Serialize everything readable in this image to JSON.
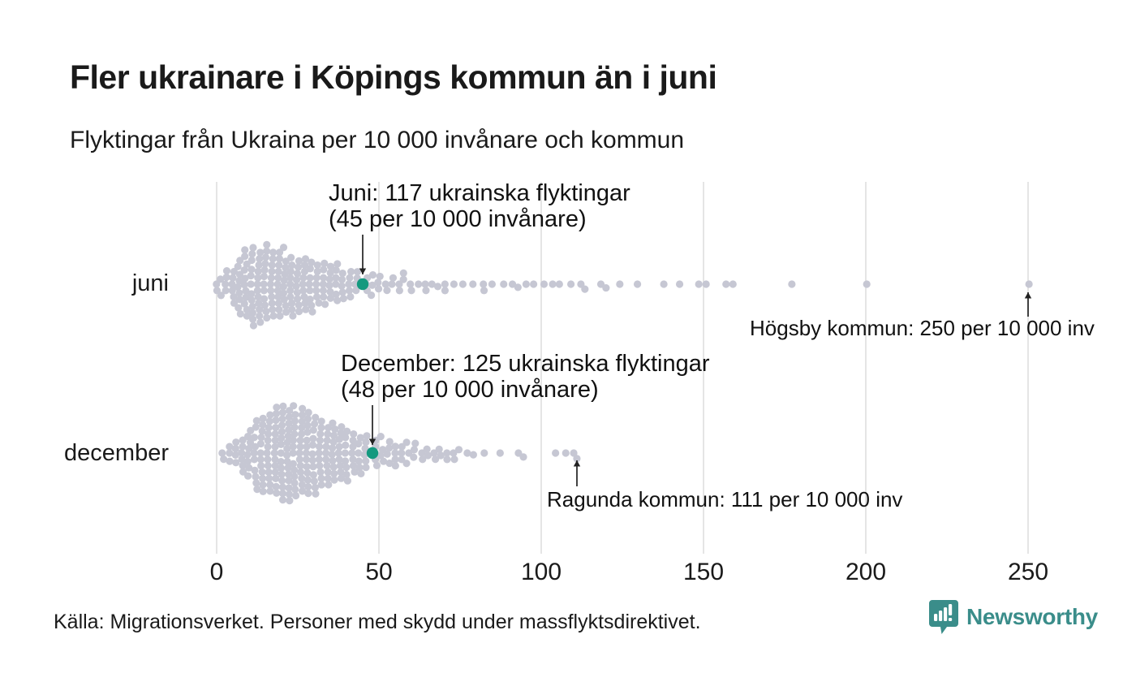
{
  "header": {
    "title": "Fler ukrainare i Köpings kommun än i juni",
    "subtitle": "Flyktingar från Ukraina per 10 000 invånare och kommun"
  },
  "chart_data": {
    "type": "beeswarm",
    "xlabel": "Flyktingar från Ukraina per 10 000 invånare",
    "x_axis": {
      "ticks": [
        0,
        50,
        100,
        150,
        200,
        250
      ],
      "range": [
        0,
        250
      ],
      "grid": true
    },
    "rows": [
      {
        "label": "juni",
        "highlight": {
          "municipality": "Köpings kommun",
          "value": 45
        },
        "histogram": [
          [
            0,
            2
          ],
          [
            1,
            2
          ],
          [
            3,
            4
          ],
          [
            5,
            6
          ],
          [
            7,
            9
          ],
          [
            9,
            11
          ],
          [
            11,
            12
          ],
          [
            13,
            12
          ],
          [
            15,
            12
          ],
          [
            17,
            11
          ],
          [
            19,
            11
          ],
          [
            21,
            10
          ],
          [
            23,
            10
          ],
          [
            25,
            9
          ],
          [
            27,
            9
          ],
          [
            29,
            8
          ],
          [
            31,
            7
          ],
          [
            33,
            7
          ],
          [
            35,
            6
          ],
          [
            37,
            6
          ],
          [
            39,
            5
          ],
          [
            41,
            5
          ],
          [
            43,
            4
          ],
          [
            46,
            3
          ],
          [
            48,
            3
          ],
          [
            50,
            3
          ],
          [
            52,
            2
          ],
          [
            54,
            2
          ],
          [
            56,
            2
          ],
          [
            58,
            2
          ],
          [
            60,
            2
          ],
          [
            62,
            1
          ],
          [
            64,
            2
          ],
          [
            66,
            1
          ],
          [
            68,
            1
          ],
          [
            70,
            2
          ],
          [
            73,
            1
          ],
          [
            76,
            1
          ],
          [
            79,
            1
          ],
          [
            82,
            2
          ],
          [
            85,
            1
          ],
          [
            88,
            1
          ],
          [
            91,
            1
          ],
          [
            93,
            1
          ],
          [
            95,
            1
          ],
          [
            98,
            1
          ],
          [
            101,
            1
          ],
          [
            104,
            1
          ],
          [
            106,
            1
          ],
          [
            109,
            1
          ],
          [
            112,
            1
          ],
          [
            113,
            1
          ],
          [
            118,
            1
          ],
          [
            120,
            1
          ],
          [
            124,
            1
          ],
          [
            130,
            1
          ],
          [
            138,
            1
          ],
          [
            143,
            1
          ],
          [
            149,
            1
          ],
          [
            151,
            1
          ],
          [
            157,
            1
          ],
          [
            159,
            1
          ],
          [
            177,
            1
          ],
          [
            200,
            1
          ],
          [
            250,
            1
          ]
        ]
      },
      {
        "label": "december",
        "highlight": {
          "municipality": "Köpings kommun",
          "value": 48
        },
        "histogram": [
          [
            2,
            2
          ],
          [
            4,
            3
          ],
          [
            6,
            4
          ],
          [
            8,
            6
          ],
          [
            10,
            8
          ],
          [
            12,
            10
          ],
          [
            14,
            12
          ],
          [
            16,
            13
          ],
          [
            18,
            14
          ],
          [
            20,
            15
          ],
          [
            22,
            15
          ],
          [
            24,
            14
          ],
          [
            26,
            14
          ],
          [
            28,
            13
          ],
          [
            30,
            12
          ],
          [
            32,
            11
          ],
          [
            34,
            10
          ],
          [
            36,
            10
          ],
          [
            38,
            9
          ],
          [
            40,
            8
          ],
          [
            42,
            7
          ],
          [
            44,
            6
          ],
          [
            46,
            6
          ],
          [
            49,
            5
          ],
          [
            51,
            4
          ],
          [
            53,
            4
          ],
          [
            55,
            4
          ],
          [
            57,
            3
          ],
          [
            59,
            3
          ],
          [
            61,
            3
          ],
          [
            63,
            2
          ],
          [
            65,
            2
          ],
          [
            67,
            2
          ],
          [
            69,
            2
          ],
          [
            71,
            2
          ],
          [
            73,
            2
          ],
          [
            75,
            1
          ],
          [
            77,
            1
          ],
          [
            79,
            1
          ],
          [
            82,
            1
          ],
          [
            87,
            1
          ],
          [
            93,
            1
          ],
          [
            95,
            1
          ],
          [
            104,
            1
          ],
          [
            108,
            1
          ],
          [
            110,
            1
          ],
          [
            111,
            1
          ]
        ]
      }
    ],
    "annotations": [
      {
        "id": "juni-note",
        "row": "juni",
        "value": 45,
        "line1": "Juni: 117 ukrainska flyktingar",
        "line2": "(45 per 10 000 invånare)"
      },
      {
        "id": "december-note",
        "row": "december",
        "value": 48,
        "line1": "December: 125 ukrainska flyktingar",
        "line2": "(48 per 10 000 invånare)"
      },
      {
        "id": "hogsby-note",
        "row": "juni",
        "value": 250,
        "text": "Högsby kommun: 250 per 10 000 inv"
      },
      {
        "id": "ragunda-note",
        "row": "december",
        "value": 111,
        "text": "Ragunda kommun: 111 per 10 000 inv"
      }
    ],
    "colors": {
      "dot": "#c6c7d3",
      "highlight": "#14997f",
      "gridline": "#dadada",
      "arrow": "#222222",
      "brand_teal": "#3a8d8a"
    }
  },
  "footer": {
    "source": "Källa: Migrationsverket. Personer med skydd under massflyktsdirektivet.",
    "brand": "Newsworthy"
  }
}
